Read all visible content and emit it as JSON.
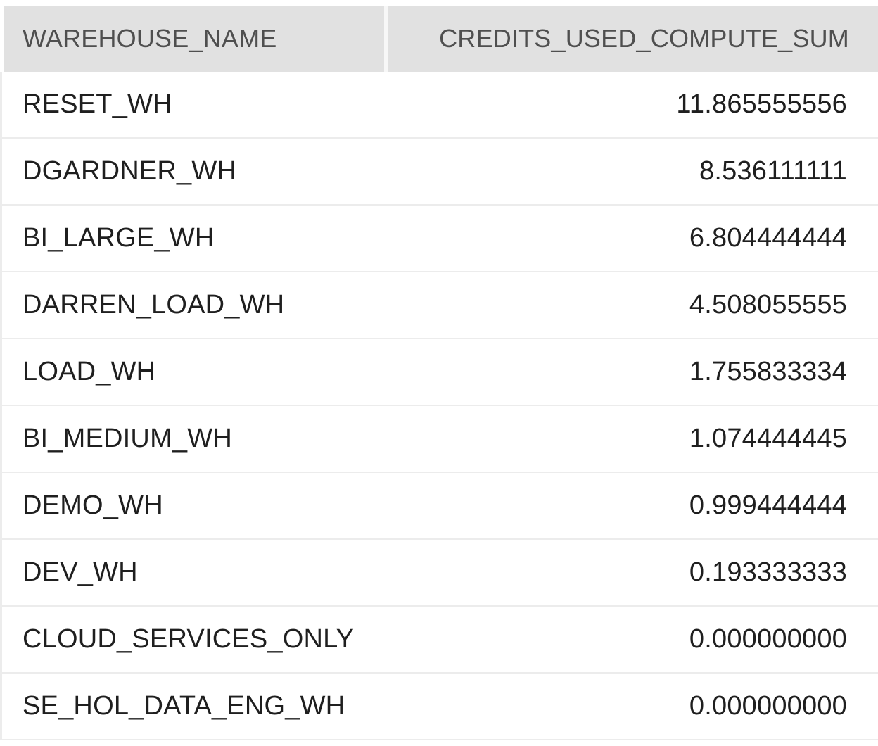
{
  "table": {
    "columns": [
      "WAREHOUSE_NAME",
      "CREDITS_USED_COMPUTE_SUM"
    ],
    "rows": [
      {
        "warehouse_name": "RESET_WH",
        "credits_used_compute_sum": "11.865555556"
      },
      {
        "warehouse_name": "DGARDNER_WH",
        "credits_used_compute_sum": "8.536111111"
      },
      {
        "warehouse_name": "BI_LARGE_WH",
        "credits_used_compute_sum": "6.804444444"
      },
      {
        "warehouse_name": "DARREN_LOAD_WH",
        "credits_used_compute_sum": "4.508055555"
      },
      {
        "warehouse_name": "LOAD_WH",
        "credits_used_compute_sum": "1.755833334"
      },
      {
        "warehouse_name": "BI_MEDIUM_WH",
        "credits_used_compute_sum": "1.074444445"
      },
      {
        "warehouse_name": "DEMO_WH",
        "credits_used_compute_sum": "0.999444444"
      },
      {
        "warehouse_name": "DEV_WH",
        "credits_used_compute_sum": "0.193333333"
      },
      {
        "warehouse_name": "CLOUD_SERVICES_ONLY",
        "credits_used_compute_sum": "0.000000000"
      },
      {
        "warehouse_name": "SE_HOL_DATA_ENG_WH",
        "credits_used_compute_sum": "0.000000000"
      }
    ]
  },
  "colors": {
    "header_background": "#e1e1e1",
    "header_text": "#4f4f4f",
    "cell_text": "#1f1f1f",
    "row_border": "#ececec"
  }
}
